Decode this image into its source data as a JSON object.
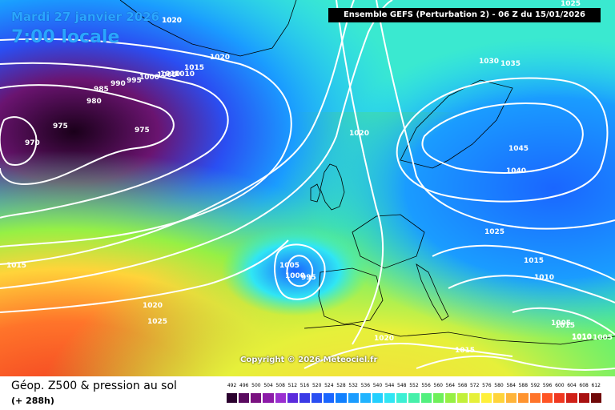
{
  "header": {
    "date": "Mardi 27 janvier 2026",
    "local_time": "7:00 locale",
    "run_info": "Ensemble GEFS  (Perturbation 2)  -  06 Z du 15/01/2026"
  },
  "copyright": "Copyright © 2026 Meteociel.fr",
  "footer": {
    "title": "Géop. Z500 & pression au sol",
    "lead": "(+ 288h)"
  },
  "legend": {
    "values": [
      "492",
      "496",
      "500",
      "504",
      "508",
      "512",
      "516",
      "520",
      "524",
      "528",
      "532",
      "536",
      "540",
      "544",
      "548",
      "552",
      "556",
      "560",
      "564",
      "568",
      "572",
      "576",
      "580",
      "584",
      "588",
      "592",
      "596",
      "600",
      "604",
      "608",
      "612"
    ],
    "colors": [
      "#2a002e",
      "#5a0a5f",
      "#7a1280",
      "#8c1aa8",
      "#9a2ed0",
      "#5a2adc",
      "#3a3ae6",
      "#2a4ef2",
      "#1a66ff",
      "#1080ff",
      "#1a9cff",
      "#20b4ff",
      "#22d0ff",
      "#30e6f4",
      "#3cf0d4",
      "#46f0aa",
      "#52f07e",
      "#6ef05a",
      "#96f044",
      "#c2f03a",
      "#e6f03a",
      "#fff03a",
      "#ffd43a",
      "#ffb43a",
      "#ff9430",
      "#ff742a",
      "#ff5424",
      "#f03820",
      "#d02018",
      "#a81010",
      "#700808"
    ]
  },
  "isobars": [
    {
      "label": "1020",
      "kind": "high"
    },
    {
      "label": "1020",
      "kind": "high"
    },
    {
      "label": "1015",
      "kind": "mid"
    },
    {
      "label": "1010",
      "kind": "mid"
    },
    {
      "label": "1005",
      "kind": "low"
    },
    {
      "label": "1000",
      "kind": "low"
    },
    {
      "label": "995",
      "kind": "low"
    },
    {
      "label": "990",
      "kind": "low"
    },
    {
      "label": "985",
      "kind": "low"
    },
    {
      "label": "980",
      "kind": "low"
    },
    {
      "label": "975",
      "kind": "low"
    },
    {
      "label": "975",
      "kind": "low"
    },
    {
      "label": "970",
      "kind": "low"
    },
    {
      "label": "1020",
      "kind": "high"
    },
    {
      "label": "1030",
      "kind": "high"
    },
    {
      "label": "1035",
      "kind": "high"
    },
    {
      "label": "1045",
      "kind": "high"
    },
    {
      "label": "1040",
      "kind": "high"
    },
    {
      "label": "1025",
      "kind": "high"
    },
    {
      "label": "1015",
      "kind": "mid"
    },
    {
      "label": "1010",
      "kind": "mid"
    },
    {
      "label": "1005",
      "kind": "low"
    },
    {
      "label": "1005",
      "kind": "low"
    },
    {
      "label": "1000",
      "kind": "low"
    },
    {
      "label": "995",
      "kind": "low"
    },
    {
      "label": "1015",
      "kind": "mid"
    },
    {
      "label": "1020",
      "kind": "high"
    },
    {
      "label": "1025",
      "kind": "high"
    },
    {
      "label": "1020",
      "kind": "high"
    },
    {
      "label": "1015",
      "kind": "mid"
    },
    {
      "label": "1010",
      "kind": "mid"
    },
    {
      "label": "1005",
      "kind": "low"
    },
    {
      "label": "1015",
      "kind": "mid"
    },
    {
      "label": "1025",
      "kind": "high"
    },
    {
      "label": "1010",
      "kind": "mid"
    },
    {
      "label": "1010",
      "kind": "mid"
    },
    {
      "label": "1020",
      "kind": "high"
    }
  ]
}
